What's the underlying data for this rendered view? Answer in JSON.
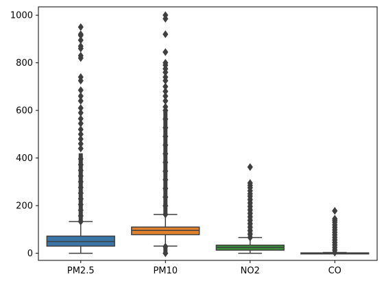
{
  "chart_data": {
    "type": "box",
    "title": "",
    "xlabel": "",
    "ylabel": "",
    "ylim": [
      -30,
      1035
    ],
    "yticks": [
      0,
      200,
      400,
      600,
      800,
      1000
    ],
    "grid": false,
    "categories": [
      "PM2.5",
      "PM10",
      "NO2",
      "CO"
    ],
    "boxes": [
      {
        "name": "PM2.5",
        "color": "#3a75a8",
        "q1": 30,
        "median": 49,
        "q3": 72,
        "whisker_low": 0,
        "whisker_high": 133,
        "outliers_dense": [
          133,
          420
        ],
        "outliers": [
          440,
          460,
          480,
          500,
          520,
          545,
          565,
          590,
          610,
          640,
          660,
          685,
          725,
          740,
          820,
          830,
          860,
          870,
          895,
          915,
          920,
          950
        ]
      },
      {
        "name": "PM10",
        "color": "#e1812c",
        "q1": 78,
        "median": 96,
        "q3": 110,
        "whisker_low": 30,
        "whisker_high": 163,
        "outliers_dense": [
          163,
          600
        ],
        "outliers_low_dense": [
          0,
          28
        ],
        "outliers": [
          615,
          640,
          660,
          680,
          700,
          725,
          740,
          760,
          775,
          790,
          800,
          845,
          920,
          985,
          1000
        ]
      },
      {
        "name": "NO2",
        "color": "#3a923a",
        "q1": 13,
        "median": 24,
        "q3": 34,
        "whisker_low": 0,
        "whisker_high": 66,
        "outliers_dense": [
          66,
          240
        ],
        "outliers": [
          250,
          262,
          275,
          285,
          295,
          362
        ]
      },
      {
        "name": "CO",
        "color": "#c03d3e",
        "q1": 0.3,
        "median": 0.8,
        "q3": 1.5,
        "whisker_low": 0,
        "whisker_high": 3,
        "outliers_dense": [
          3,
          130
        ],
        "outliers": [
          138,
          145,
          178
        ]
      }
    ]
  }
}
